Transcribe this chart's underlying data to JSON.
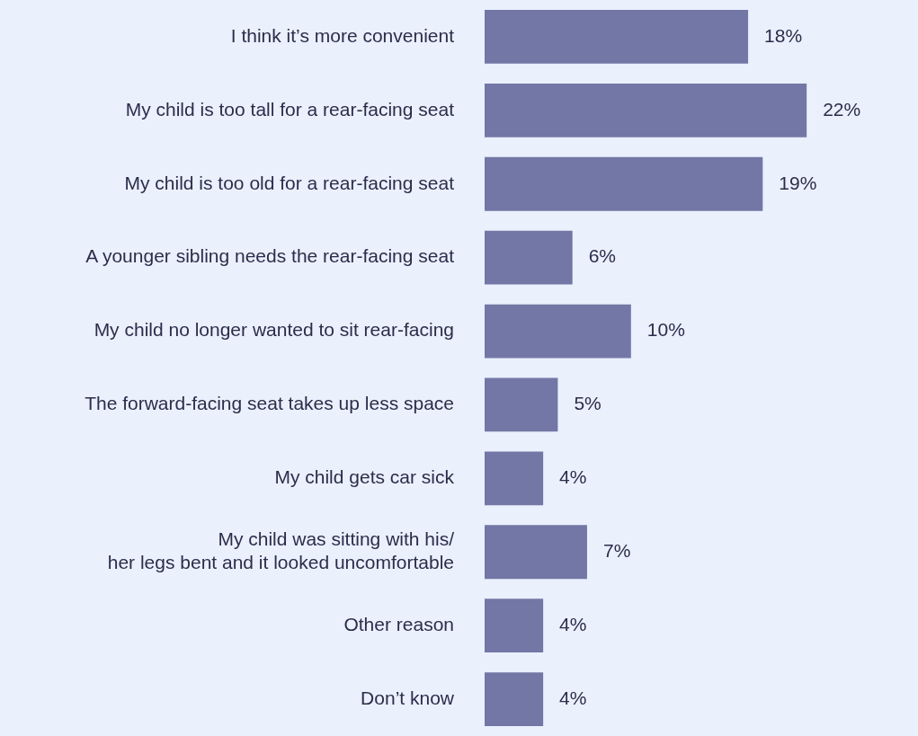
{
  "chart_data": {
    "type": "bar",
    "orientation": "horizontal",
    "categories": [
      "I think it’s more convenient",
      "My child is too tall for a rear-facing seat",
      "My child is too old for a rear-facing seat",
      "A younger sibling needs the rear-facing seat",
      "My child no longer wanted to sit rear-facing",
      "The forward-facing seat takes up less space",
      "My child gets car sick",
      "My child was sitting with his/\nher legs bent and it looked uncomfortable",
      "Other reason",
      "Don’t know"
    ],
    "values": [
      18,
      22,
      19,
      6,
      10,
      5,
      4,
      7,
      4,
      4
    ],
    "value_labels": [
      "18%",
      "22%",
      "19%",
      "6%",
      "10%",
      "5%",
      "4%",
      "7%",
      "4%",
      "4%"
    ],
    "color": "#7377a5"
  }
}
